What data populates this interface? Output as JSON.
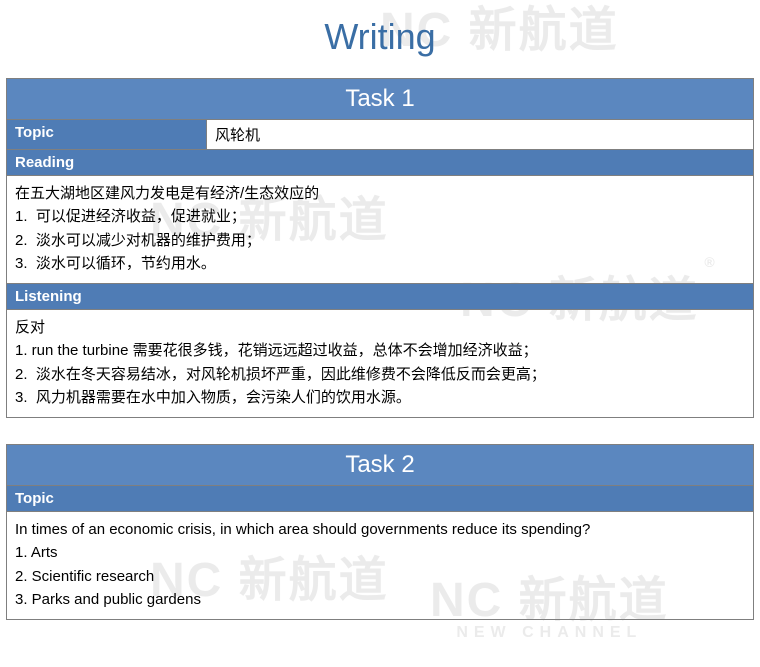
{
  "page_title": "Writing",
  "colors": {
    "title_color": "#3a6ea5",
    "header_bg": "#5b87bf",
    "subheader_bg": "#4f7cb5",
    "border": "#7f7f7f",
    "text": "#000000",
    "watermark": "#d8d8d8"
  },
  "watermark": {
    "logo": "NC 新航道",
    "sub": "NEW CHANNEL",
    "reg": "®"
  },
  "task1": {
    "title": "Task 1",
    "topic_label": "Topic",
    "topic_value": "风轮机",
    "reading_label": "Reading",
    "reading_lines": [
      "在五大湖地区建风力发电是有经济/生态效应的",
      "1.  可以促进经济收益，促进就业；",
      "2.  淡水可以减少对机器的维护费用；",
      "3.  淡水可以循环，节约用水。"
    ],
    "listening_label": "Listening",
    "listening_lines": [
      "反对",
      "1. run the turbine 需要花很多钱，花销远远超过收益，总体不会增加经济收益；",
      "2.  淡水在冬天容易结冰，对风轮机损坏严重，因此维修费不会降低反而会更高；",
      "3.  风力机器需要在水中加入物质，会污染人们的饮用水源。"
    ]
  },
  "task2": {
    "title": "Task 2",
    "topic_label": "Topic",
    "content_lines": [
      "In times of an economic crisis, in which area should governments reduce its spending?",
      "1. Arts",
      "2. Scientific research",
      "3. Parks and public gardens"
    ]
  }
}
